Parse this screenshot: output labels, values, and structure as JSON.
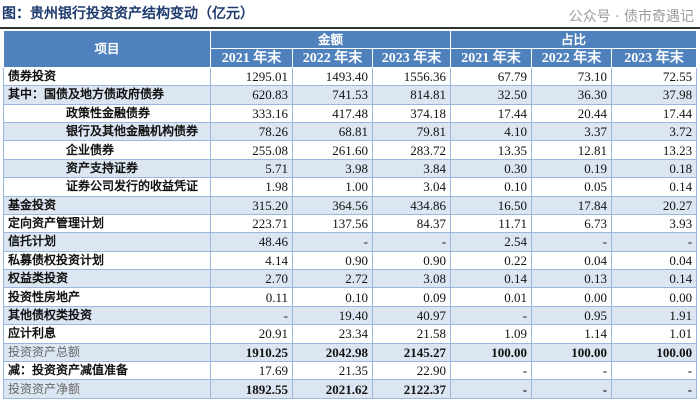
{
  "title": "图：贵州银行投资资产结构变动（亿元）",
  "header": {
    "item": "项目",
    "group_amount": "金额",
    "group_share": "占比",
    "years": [
      "2021 年末",
      "2022 年末",
      "2023 年末",
      "2021 年末",
      "2022 年末",
      "2023 年末"
    ]
  },
  "rows": [
    {
      "label": "债券投资",
      "values": [
        "1295.01",
        "1493.40",
        "1556.36",
        "67.79",
        "73.10",
        "72.55"
      ]
    },
    {
      "label": "其中：国债及地方债政府债券",
      "values": [
        "620.83",
        "741.53",
        "814.81",
        "32.50",
        "36.30",
        "37.98"
      ]
    },
    {
      "label": "政策性金融债券",
      "values": [
        "333.16",
        "417.48",
        "374.18",
        "17.44",
        "20.44",
        "17.44"
      ]
    },
    {
      "label": "银行及其他金融机构债券",
      "values": [
        "78.26",
        "68.81",
        "79.81",
        "4.10",
        "3.37",
        "3.72"
      ]
    },
    {
      "label": "企业债券",
      "values": [
        "255.08",
        "261.60",
        "283.72",
        "13.35",
        "12.81",
        "13.23"
      ]
    },
    {
      "label": "资产支持证券",
      "values": [
        "5.71",
        "3.98",
        "3.84",
        "0.30",
        "0.19",
        "0.18"
      ]
    },
    {
      "label": "证券公司发行的收益凭证",
      "values": [
        "1.98",
        "1.00",
        "3.04",
        "0.10",
        "0.05",
        "0.14"
      ]
    },
    {
      "label": "基金投资",
      "values": [
        "315.20",
        "364.56",
        "434.86",
        "16.50",
        "17.84",
        "20.27"
      ]
    },
    {
      "label": "定向资产管理计划",
      "values": [
        "223.71",
        "137.56",
        "84.37",
        "11.71",
        "6.73",
        "3.93"
      ]
    },
    {
      "label": "信托计划",
      "values": [
        "48.46",
        "-",
        "-",
        "2.54",
        "-",
        "-"
      ]
    },
    {
      "label": "私募债权投资计划",
      "values": [
        "4.14",
        "0.90",
        "0.90",
        "0.22",
        "0.04",
        "0.04"
      ]
    },
    {
      "label": "权益类投资",
      "values": [
        "2.70",
        "2.72",
        "3.08",
        "0.14",
        "0.13",
        "0.14"
      ]
    },
    {
      "label": "投资性房地产",
      "values": [
        "0.11",
        "0.10",
        "0.09",
        "0.01",
        "0.00",
        "0.00"
      ]
    },
    {
      "label": "其他债权类投资",
      "values": [
        "-",
        "19.40",
        "40.97",
        "-",
        "0.95",
        "1.91"
      ]
    },
    {
      "label": "应计利息",
      "values": [
        "20.91",
        "23.34",
        "21.58",
        "1.09",
        "1.14",
        "1.01"
      ]
    },
    {
      "label": "投资资产总额",
      "values": [
        "1910.25",
        "2042.98",
        "2145.27",
        "100.00",
        "100.00",
        "100.00"
      ]
    },
    {
      "label": "减：投资资产减值准备",
      "values": [
        "17.69",
        "21.35",
        "22.90",
        "-",
        "-",
        "-"
      ]
    },
    {
      "label": "投资资产净额",
      "values": [
        "1892.55",
        "2021.62",
        "2122.37",
        "-",
        "-",
        "-"
      ]
    }
  ],
  "watermark": "公众号 · 债市奇遇记",
  "colors": {
    "header_bg": "#4f81bd",
    "band_bg": "#dce6f2",
    "title": "#1f3b6e"
  }
}
